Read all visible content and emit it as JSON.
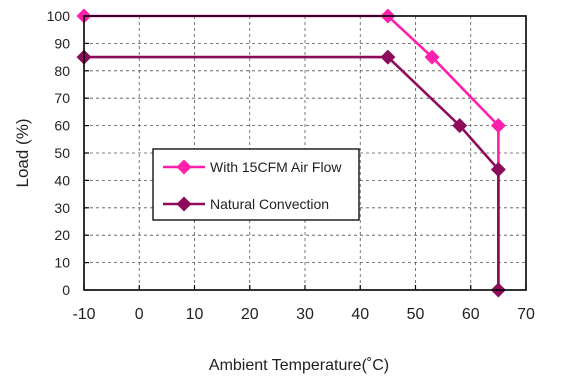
{
  "chart_data": {
    "type": "line",
    "xlabel": "Ambient Temperature(˚C)",
    "ylabel": "Load (%)",
    "xlim": [
      -10,
      70
    ],
    "ylim": [
      0,
      100
    ],
    "x_ticks": [
      "-10",
      "0",
      "10",
      "20",
      "30",
      "40",
      "50",
      "60",
      "70"
    ],
    "y_ticks": [
      "0",
      "10",
      "20",
      "30",
      "40",
      "50",
      "60",
      "70",
      "80",
      "90",
      "100"
    ],
    "grid": true,
    "legend_position": "center-left",
    "series": [
      {
        "name": "With 15CFM Air Flow",
        "color": "#ff1fad",
        "points": [
          [
            -10,
            100
          ],
          [
            45,
            100
          ],
          [
            53,
            85
          ],
          [
            65,
            60
          ],
          [
            65,
            0
          ]
        ],
        "markers": [
          [
            -10,
            100
          ],
          [
            45,
            100
          ],
          [
            53,
            85
          ],
          [
            65,
            60
          ]
        ]
      },
      {
        "name": "Natural Convection",
        "color": "#8c0b5a",
        "points": [
          [
            -10,
            85
          ],
          [
            45,
            85
          ],
          [
            58,
            60
          ],
          [
            65,
            44
          ],
          [
            65,
            0
          ]
        ],
        "markers": [
          [
            -10,
            85
          ],
          [
            45,
            85
          ],
          [
            58,
            60
          ],
          [
            65,
            44
          ],
          [
            65,
            0
          ]
        ]
      }
    ]
  }
}
